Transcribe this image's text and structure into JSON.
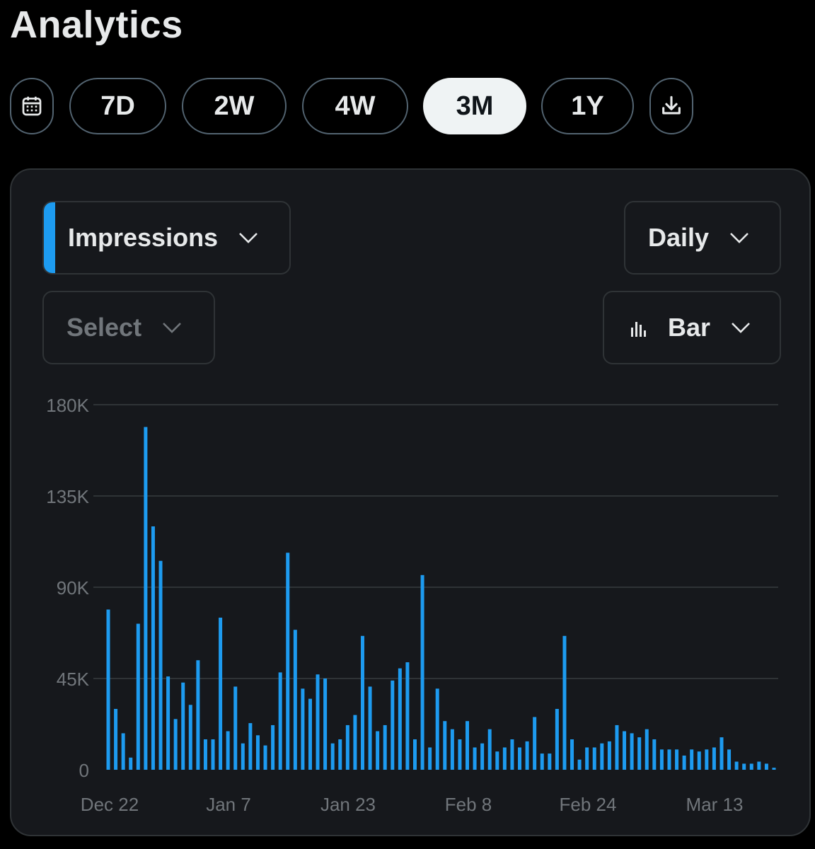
{
  "header": {
    "title": "Analytics"
  },
  "ranges": {
    "calendar_icon": "calendar-icon",
    "options": [
      "7D",
      "2W",
      "4W",
      "3M",
      "1Y"
    ],
    "active": "3M",
    "download_icon": "download-icon"
  },
  "controls": {
    "metric": "Impressions",
    "interval": "Daily",
    "compare_placeholder": "Select",
    "chart_type": "Bar",
    "chart_type_icon": "bar-chart-icon",
    "chevron_icon": "chevron-down-icon"
  },
  "colors": {
    "accent": "#1d9bf0",
    "active_pill": "#eff3f4",
    "card_bg": "#16181c"
  },
  "chart_data": {
    "type": "bar",
    "x_tick_labels": [
      "Dec 22",
      "Jan 7",
      "Jan 23",
      "Feb 8",
      "Feb 24",
      "Mar 13"
    ],
    "y_tick_labels": [
      "0",
      "45K",
      "90K",
      "135K",
      "180K"
    ],
    "ylim": [
      0,
      180000
    ],
    "grid": true,
    "series": [
      {
        "color": "#1d9bf0",
        "values": [
          79000,
          30000,
          18000,
          6000,
          72000,
          169000,
          120000,
          103000,
          46000,
          25000,
          43000,
          32000,
          54000,
          15000,
          15000,
          75000,
          19000,
          41000,
          13000,
          23000,
          17000,
          12000,
          22000,
          48000,
          107000,
          69000,
          40000,
          35000,
          47000,
          45000,
          13000,
          15000,
          22000,
          27000,
          66000,
          41000,
          19000,
          22000,
          44000,
          50000,
          53000,
          15000,
          96000,
          11000,
          40000,
          24000,
          20000,
          15000,
          24000,
          11000,
          13000,
          20000,
          9000,
          11000,
          15000,
          11000,
          14000,
          26000,
          8000,
          8000,
          30000,
          66000,
          15000,
          5000,
          11000,
          11000,
          13000,
          14000,
          22000,
          19000,
          18000,
          16000,
          20000,
          15000,
          10000,
          10000,
          10000,
          7000,
          10000,
          9000,
          10000,
          11000,
          16000,
          10000,
          4000,
          3000,
          3000,
          4000,
          3000,
          1000
        ]
      }
    ]
  }
}
